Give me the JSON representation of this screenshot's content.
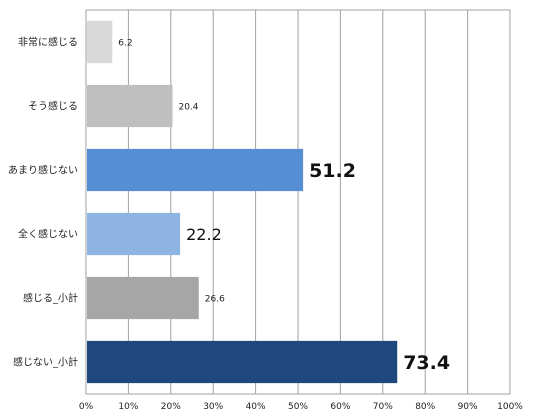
{
  "chart_data": {
    "type": "bar",
    "orientation": "horizontal",
    "categories": [
      "非常に感じる",
      "そう感じる",
      "あまり感じない",
      "全く感じない",
      "感じる_小計",
      "感じない_小計"
    ],
    "values": [
      6.2,
      20.4,
      51.2,
      22.2,
      26.6,
      73.4
    ],
    "value_labels": [
      "6.2",
      "20.4",
      "51.2",
      "22.2",
      "26.6",
      "73.4"
    ],
    "value_label_emphasis": [
      "small",
      "small",
      "large",
      "medium",
      "small",
      "large"
    ],
    "bar_colors": [
      "#d9d9d9",
      "#bfbfbf",
      "#558ed5",
      "#8eb4e3",
      "#a6a6a6",
      "#1f497d"
    ],
    "xlim": [
      0,
      100
    ],
    "x_ticks": [
      0,
      10,
      20,
      30,
      40,
      50,
      60,
      70,
      80,
      90,
      100
    ],
    "x_tick_labels": [
      "0%",
      "10%",
      "20%",
      "30%",
      "40%",
      "50%",
      "60%",
      "70%",
      "80%",
      "90%",
      "100%"
    ],
    "grid": true,
    "legend": "none",
    "title": "",
    "xlabel": "",
    "ylabel": ""
  }
}
